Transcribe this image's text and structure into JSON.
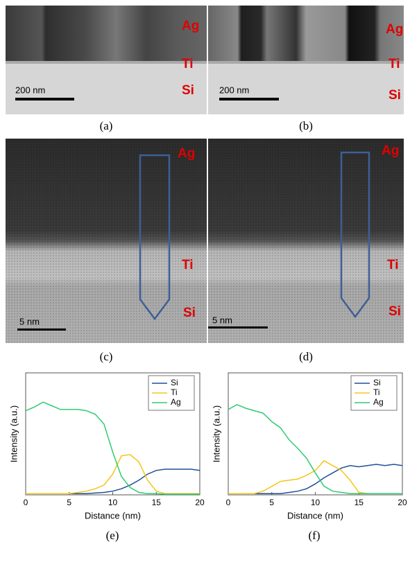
{
  "images": [
    {
      "labels": [
        "Ag",
        "Ti",
        "Si"
      ],
      "scale_bar": "200 nm",
      "caption": "(a)"
    },
    {
      "labels": [
        "Ag",
        "Ti",
        "Si"
      ],
      "scale_bar": "200 nm",
      "caption": "(b)"
    },
    {
      "labels": [
        "Ag",
        "Ti",
        "Si"
      ],
      "scale_bar": "5 nm",
      "caption": "(c)"
    },
    {
      "labels": [
        "Ag",
        "Ti",
        "Si"
      ],
      "scale_bar": "5 nm",
      "caption": "(d)"
    }
  ],
  "chart_captions": [
    "(e)",
    "(f)"
  ],
  "chart_data": [
    {
      "type": "line",
      "x_label": "Distance (nm)",
      "y_label": "Intensity (a.u.)",
      "x": [
        0,
        1,
        2,
        3,
        4,
        5,
        6,
        7,
        8,
        9,
        10,
        11,
        12,
        13,
        14,
        15,
        16,
        17,
        18,
        19,
        20
      ],
      "xlim": [
        0,
        20
      ],
      "xticks": [
        0,
        5,
        10,
        15,
        20
      ],
      "ylim": [
        0,
        1
      ],
      "legend": "upper right",
      "series": [
        {
          "name": "Si",
          "color": "#1f4e99",
          "values": [
            0.01,
            0.01,
            0.01,
            0.01,
            0.01,
            0.01,
            0.01,
            0.01,
            0.015,
            0.02,
            0.03,
            0.05,
            0.08,
            0.12,
            0.17,
            0.2,
            0.21,
            0.21,
            0.21,
            0.21,
            0.2
          ]
        },
        {
          "name": "Ti",
          "color": "#f5c518",
          "values": [
            0.01,
            0.01,
            0.01,
            0.01,
            0.01,
            0.01,
            0.02,
            0.03,
            0.05,
            0.08,
            0.17,
            0.32,
            0.33,
            0.27,
            0.12,
            0.03,
            0.01,
            0.01,
            0.01,
            0.01,
            0.01
          ]
        },
        {
          "name": "Ag",
          "color": "#2ecc71",
          "values": [
            0.69,
            0.72,
            0.76,
            0.73,
            0.7,
            0.7,
            0.7,
            0.69,
            0.66,
            0.58,
            0.35,
            0.15,
            0.06,
            0.02,
            0.01,
            0.01,
            0.005,
            0.005,
            0.005,
            0.005,
            0.005
          ]
        }
      ]
    },
    {
      "type": "line",
      "x_label": "Distance (nm)",
      "y_label": "Intensity (a.u.)",
      "x": [
        0,
        1,
        2,
        3,
        4,
        5,
        6,
        7,
        8,
        9,
        10,
        11,
        12,
        13,
        14,
        15,
        16,
        17,
        18,
        19,
        20
      ],
      "xlim": [
        0,
        20
      ],
      "xticks": [
        0,
        5,
        10,
        15,
        20
      ],
      "ylim": [
        0,
        1
      ],
      "legend": "upper right",
      "series": [
        {
          "name": "Si",
          "color": "#1f4e99",
          "values": [
            0.01,
            0.01,
            0.01,
            0.01,
            0.01,
            0.01,
            0.01,
            0.02,
            0.03,
            0.05,
            0.09,
            0.14,
            0.18,
            0.22,
            0.24,
            0.23,
            0.24,
            0.25,
            0.24,
            0.25,
            0.24
          ]
        },
        {
          "name": "Ti",
          "color": "#f5c518",
          "values": [
            0.01,
            0.01,
            0.01,
            0.01,
            0.03,
            0.07,
            0.11,
            0.12,
            0.13,
            0.16,
            0.2,
            0.28,
            0.24,
            0.2,
            0.12,
            0.02,
            0.01,
            0.01,
            0.01,
            0.01,
            0.01
          ]
        },
        {
          "name": "Ag",
          "color": "#2ecc71",
          "values": [
            0.7,
            0.74,
            0.71,
            0.69,
            0.67,
            0.6,
            0.55,
            0.45,
            0.38,
            0.3,
            0.18,
            0.07,
            0.03,
            0.02,
            0.01,
            0.01,
            0.01,
            0.01,
            0.01,
            0.01,
            0.01
          ]
        }
      ]
    }
  ]
}
